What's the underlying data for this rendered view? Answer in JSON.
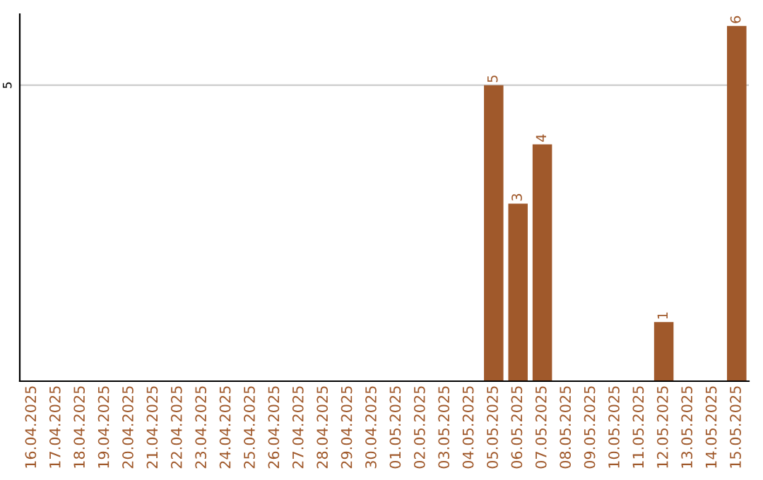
{
  "chart_data": {
    "type": "bar",
    "categories": [
      "16.04.2025",
      "17.04.2025",
      "18.04.2025",
      "19.04.2025",
      "20.04.2025",
      "21.04.2025",
      "22.04.2025",
      "23.04.2025",
      "24.04.2025",
      "25.04.2025",
      "26.04.2025",
      "27.04.2025",
      "28.04.2025",
      "29.04.2025",
      "30.04.2025",
      "01.05.2025",
      "02.05.2025",
      "03.05.2025",
      "04.05.2025",
      "05.05.2025",
      "06.05.2025",
      "07.05.2025",
      "08.05.2025",
      "09.05.2025",
      "10.05.2025",
      "11.05.2025",
      "12.05.2025",
      "13.05.2025",
      "14.05.2025",
      "15.05.2025"
    ],
    "values": [
      null,
      null,
      null,
      null,
      null,
      null,
      null,
      null,
      null,
      null,
      null,
      null,
      null,
      null,
      null,
      null,
      null,
      null,
      null,
      5,
      3,
      4,
      null,
      null,
      null,
      null,
      1,
      null,
      null,
      6
    ],
    "data_labels": true,
    "color": "#a0592b",
    "ylim": [
      0,
      6.2
    ],
    "ref_lines": [
      {
        "axis": "y",
        "value": 5,
        "label": "5",
        "color": "#cccccc"
      }
    ]
  }
}
